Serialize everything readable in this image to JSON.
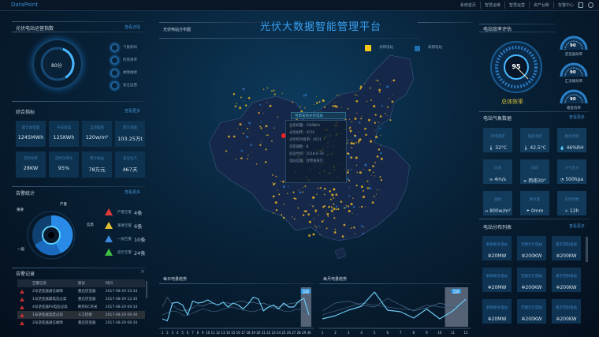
{
  "topbar": {
    "logo": "DataPoint",
    "nav": [
      "系统首页",
      "智慧运维",
      "智慧运营",
      "资产台账",
      "告警中心"
    ]
  },
  "title": "光伏大数据智能管理平台",
  "map": {
    "panel_title": "光伏电站分布图",
    "legend": [
      {
        "label": "并网电站",
        "color": "#f5c518"
      },
      {
        "label": "离网电站",
        "color": "#1e6fb0"
      }
    ],
    "popup": {
      "title": "甘肃某地光伏电站",
      "rows": [
        "总装机量：35MW/h",
        "光伏组件：4532",
        "光伏阵列组串：4531",
        "逆变器数：8",
        "投运时间：2018-6-30",
        "电站位置：甘肃省某市"
      ]
    }
  },
  "left": {
    "index": {
      "title": "光伏电站运营指数",
      "more": "查看详情",
      "score": "80分",
      "score_value": 80,
      "items": [
        "气象影响",
        "检修清单",
        "故障维修",
        "安全运营"
      ]
    },
    "metrics": {
      "title": "综合指标",
      "more": "查看更多",
      "cards": [
        {
          "label": "累计发电量",
          "value": "1245MWh"
        },
        {
          "label": "今日发电",
          "value": "125KWh"
        },
        {
          "label": "当前辐照",
          "value": "120w/m²"
        },
        {
          "label": "累计减排",
          "value": "103.25万t"
        },
        {
          "label": "实时功率",
          "value": "28KW"
        },
        {
          "label": "实时功率比",
          "value": "95%"
        },
        {
          "label": "累计收益",
          "value": "78万元"
        },
        {
          "label": "安全生产",
          "value": "467天"
        }
      ]
    },
    "alarm_stats": {
      "title": "告警统计",
      "more": "查看更多",
      "pie_labels": [
        "严重",
        "重要",
        "信息",
        "一般"
      ],
      "items": [
        {
          "label": "严重告警",
          "count": "4条",
          "color": "#e03a3a"
        },
        {
          "label": "重要告警",
          "count": "6条",
          "color": "#e0c030"
        },
        {
          "label": "一般告警",
          "count": "10条",
          "color": "#3a8ae0"
        },
        {
          "label": "提示告警",
          "count": "24条",
          "color": "#40c040"
        }
      ]
    },
    "alarm_log": {
      "title": "告警记录",
      "close": "×",
      "headers": [
        "告警信息",
        "建议",
        "时间"
      ],
      "rows": [
        [
          "2号逆变器通信故障",
          "重启逆变器",
          "2017-08-29 10:34"
        ],
        [
          "1号逆变器漏电流过高",
          "重启逆变器",
          "2017-08-29 12:30"
        ],
        [
          "4号逆变器PV电压过高",
          "断开DC开关",
          "2017-08-29 09:34"
        ],
        [
          "1号逆变器温度过高",
          "人工检修",
          "2017-08-29 09:30"
        ],
        [
          "2号逆变器通信故障",
          "重启逆变器",
          "2017-08-29 08:34"
        ]
      ]
    }
  },
  "right": {
    "efficiency": {
      "title": "电站效率评估",
      "total_value": "95",
      "total_label": "总体效率",
      "gauges": [
        {
          "value": "90",
          "label": "逆变器效率"
        },
        {
          "value": "90",
          "label": "汇流箱效率"
        },
        {
          "value": "90",
          "label": "箱变效率"
        }
      ]
    },
    "weather": {
      "title": "电站气象数据",
      "more": "查看更多",
      "cards": [
        {
          "label": "环境温度",
          "value": "32°C",
          "icon": "thermometer-icon",
          "glyph": "🌡"
        },
        {
          "label": "电板温度",
          "value": "42.5°C",
          "icon": "thermometer-icon",
          "glyph": "🌡"
        },
        {
          "label": "相对湿度",
          "value": "46%RH",
          "icon": "humidity-icon",
          "glyph": "💧"
        },
        {
          "label": "风速",
          "value": "4m/s",
          "icon": "wind-icon",
          "glyph": "≋"
        },
        {
          "label": "风向",
          "value": "西南30°",
          "icon": "wind-direction-icon",
          "glyph": "≋"
        },
        {
          "label": "大气压力",
          "value": "500hpa",
          "icon": "pressure-icon",
          "glyph": "◔"
        },
        {
          "label": "辐射",
          "value": "800w/m²",
          "icon": "radiation-icon",
          "glyph": "↔"
        },
        {
          "label": "降水量",
          "value": "0mm",
          "icon": "rain-icon",
          "glyph": "☂"
        },
        {
          "label": "日照时数",
          "value": "12h",
          "icon": "sun-icon",
          "glyph": "☼"
        }
      ]
    },
    "stations": {
      "title": "电站分布列表",
      "more": "查看更多",
      "cards": [
        {
          "name": "射阳新光电站",
          "value": "20MW"
        },
        {
          "name": "无锡元亿电站",
          "value": "200KW"
        },
        {
          "name": "南京范阳电站",
          "value": "200KW"
        },
        {
          "name": "射阳新光电站",
          "value": "20MW"
        },
        {
          "name": "无锡元亿电站",
          "value": "200KW"
        },
        {
          "name": "南京范阳电站",
          "value": "200KW"
        },
        {
          "name": "射阳新光电站",
          "value": "20MW"
        },
        {
          "name": "无锡元亿电站",
          "value": "200KW"
        },
        {
          "name": "南京范阳电站",
          "value": "200KW"
        }
      ]
    }
  },
  "charts": {
    "daily": {
      "title": "每日电量趋势",
      "highlight": "当前",
      "type": "line",
      "categories": [
        "1",
        "2",
        "3",
        "4",
        "5",
        "6",
        "7",
        "8",
        "9",
        "10",
        "11",
        "12",
        "13",
        "14",
        "15",
        "16",
        "17",
        "18",
        "19",
        "20",
        "21",
        "22",
        "23",
        "24",
        "25",
        "26",
        "27",
        "28",
        "29",
        "30"
      ],
      "series": [
        {
          "values": [
            20,
            15,
            60,
            62,
            55,
            30,
            65,
            60,
            62,
            68,
            60,
            55,
            62,
            50,
            60,
            55,
            45,
            58,
            75,
            70,
            40,
            50,
            55,
            45,
            60,
            50,
            50,
            65,
            72,
            30
          ]
        },
        {
          "values": [
            50,
            75,
            55,
            45,
            40,
            42,
            48,
            55,
            52,
            58,
            60,
            55,
            62,
            60,
            58,
            64,
            65,
            60,
            62,
            58,
            60,
            55,
            52,
            50,
            55,
            58,
            60,
            62,
            58,
            55
          ]
        },
        {
          "values": [
            30,
            35,
            40,
            38,
            30,
            28,
            35,
            40,
            45,
            42,
            38,
            40,
            45,
            48,
            50,
            45,
            42,
            40,
            38,
            42,
            45,
            50,
            48,
            45,
            40,
            38,
            42,
            45,
            40,
            35
          ]
        }
      ]
    },
    "monthly": {
      "title": "每月电量趋势",
      "highlight": "当前",
      "type": "line",
      "categories": [
        "1",
        "2",
        "3",
        "4",
        "5",
        "6",
        "7",
        "8",
        "9",
        "10",
        "11",
        "12"
      ],
      "series": [
        {
          "values": [
            20,
            28,
            42,
            52,
            88,
            42,
            38,
            22,
            45,
            20,
            40,
            70
          ]
        },
        {
          "values": [
            40,
            60,
            65,
            55,
            50,
            72,
            55,
            40,
            48,
            60,
            52,
            58
          ]
        },
        {
          "values": [
            30,
            40,
            50,
            60,
            55,
            50,
            45,
            42,
            55,
            50,
            48,
            52
          ]
        }
      ]
    }
  }
}
